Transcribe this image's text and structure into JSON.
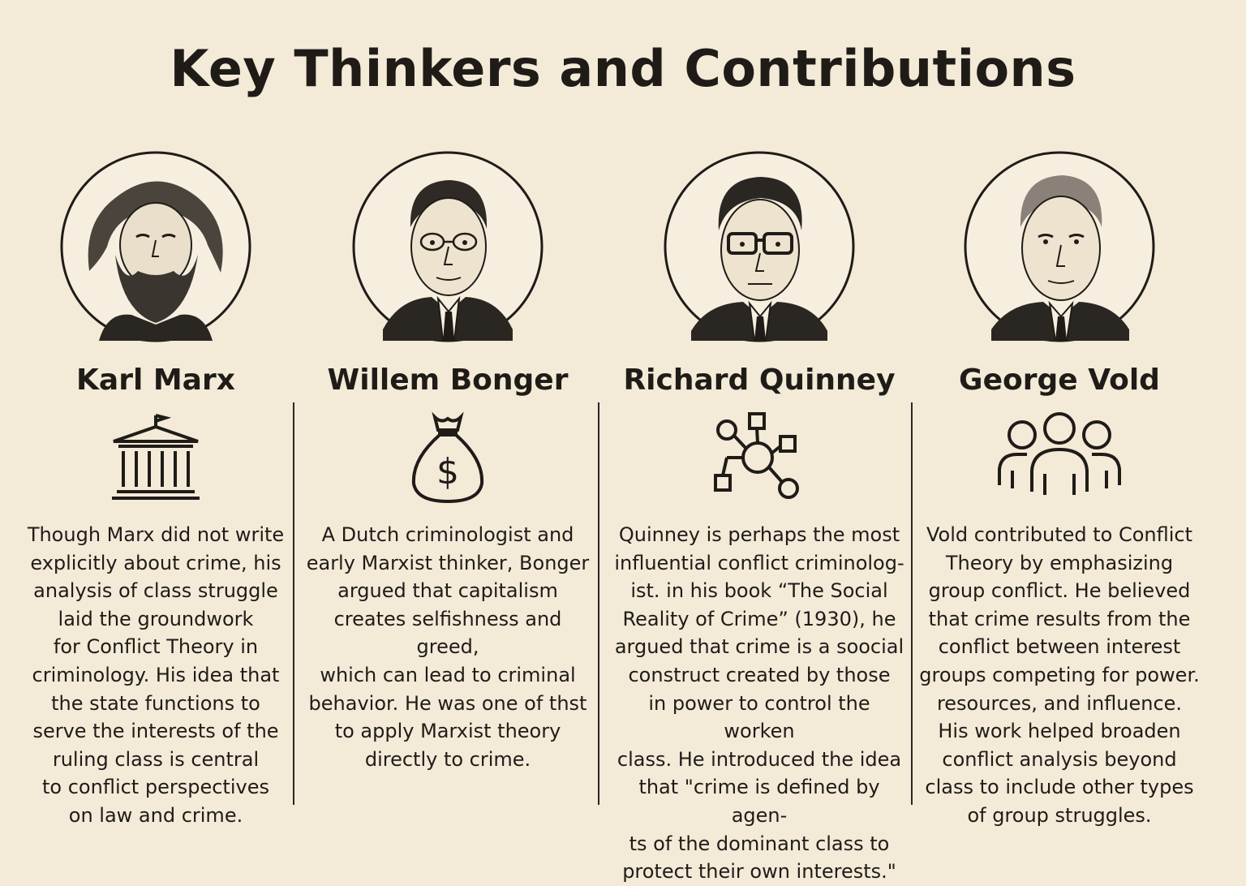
{
  "title": "Key Thinkers and Contributions",
  "thinkers": [
    {
      "name": "Karl Marx",
      "icon": "courthouse-icon",
      "description": "Though Marx did not write\nexplicitly about crime, his\nanalysis of class struggle\nlaid the groundwork\nfor Conflict Theory in\ncriminology. His idea that\nthe state functions to\nserve the interests of the\nruling class is central\nto conflict perspectives\non law and crime."
    },
    {
      "name": "Willem Bonger",
      "icon": "money-bag-icon",
      "description": "A Dutch criminologist and\nearly Marxist thinker, Bonger\nargued that capitalism\ncreates selfishness and greed,\nwhich can lead to criminal\nbehavior. He was one of thst\nto apply Marxist theory\ndirectly to crime."
    },
    {
      "name": "Richard Quinney",
      "icon": "network-icon",
      "description": "Quinney is perhaps the most\ninfluential conflict criminolog-\nist. in his book “The Social\nReality of Crime” (1930), he\nargued that crime is a soocial\nconstruct created by those\nin power to control the worken\nclass. He introduced the idea\nthat \"crime is defined by agen-\nts of the dominant class to\nprotect their own interests.\""
    },
    {
      "name": "George Vold",
      "icon": "group-icon",
      "description": "Vold contributed to Conflict\nTheory by emphasizing\ngroup conflict. He believed\nthat crime results from the\nconflict between interest\ngroups competing for power.\nresources, and influence.\nHis work helped broaden\nconflict analysis beyond\nclass to include other types\nof group struggles."
    }
  ]
}
